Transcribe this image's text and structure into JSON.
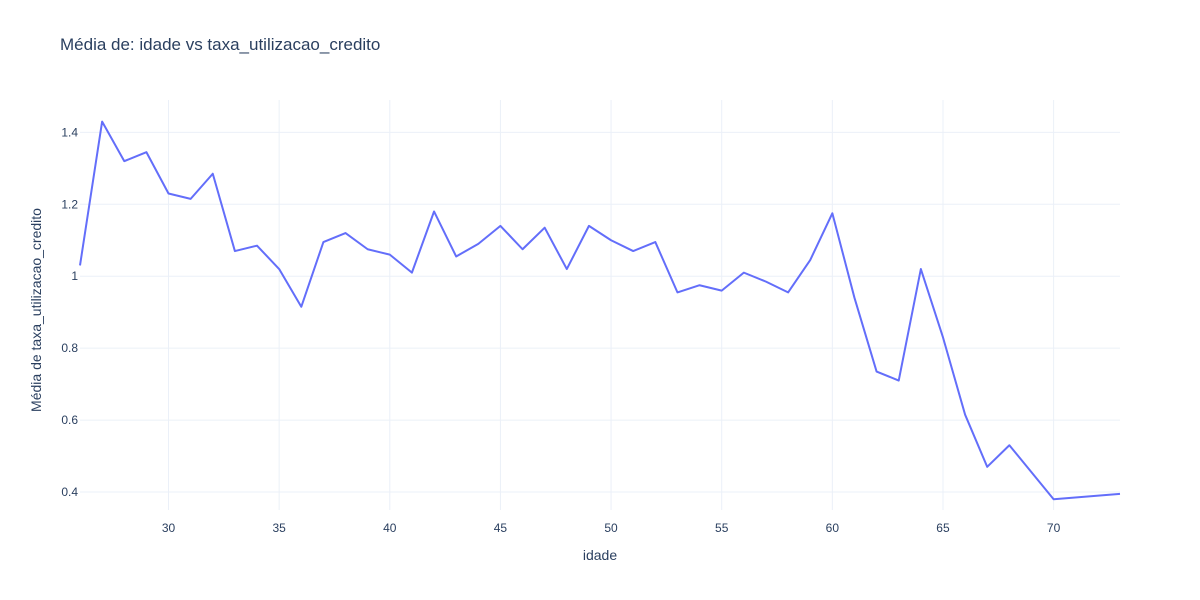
{
  "chart_data": {
    "type": "line",
    "title": "Média de: idade vs taxa_utilizacao_credito",
    "xlabel": "idade",
    "ylabel": "Média de taxa_utilizacao_credito",
    "xlim": [
      26,
      73
    ],
    "ylim": [
      0.35,
      1.49
    ],
    "x_ticks": [
      30,
      35,
      40,
      45,
      50,
      55,
      60,
      65,
      70
    ],
    "y_ticks": [
      0.4,
      0.6,
      0.8,
      1,
      1.2,
      1.4
    ],
    "x_tick_labels": [
      "30",
      "35",
      "40",
      "45",
      "50",
      "55",
      "60",
      "65",
      "70"
    ],
    "y_tick_labels": [
      "0.4",
      "0.6",
      "0.8",
      "1",
      "1.2",
      "1.4"
    ],
    "grid": true,
    "series": [
      {
        "color": "#636efa",
        "x": [
          26,
          27,
          28,
          29,
          30,
          31,
          32,
          33,
          34,
          35,
          36,
          37,
          38,
          39,
          40,
          41,
          42,
          43,
          44,
          45,
          46,
          47,
          48,
          49,
          50,
          51,
          52,
          53,
          54,
          55,
          56,
          57,
          58,
          59,
          60,
          61,
          62,
          63,
          64,
          65,
          66,
          67,
          68,
          70,
          73
        ],
        "y": [
          1.03,
          1.43,
          1.32,
          1.345,
          1.23,
          1.215,
          1.285,
          1.07,
          1.085,
          1.02,
          0.915,
          1.095,
          1.12,
          1.075,
          1.06,
          1.01,
          1.18,
          1.055,
          1.09,
          1.14,
          1.075,
          1.135,
          1.02,
          1.14,
          1.1,
          1.07,
          1.095,
          0.955,
          0.975,
          0.96,
          1.01,
          0.985,
          0.955,
          1.045,
          1.175,
          0.94,
          0.735,
          0.71,
          1.02,
          0.83,
          0.615,
          0.47,
          0.53,
          0.38,
          0.395
        ]
      }
    ]
  }
}
